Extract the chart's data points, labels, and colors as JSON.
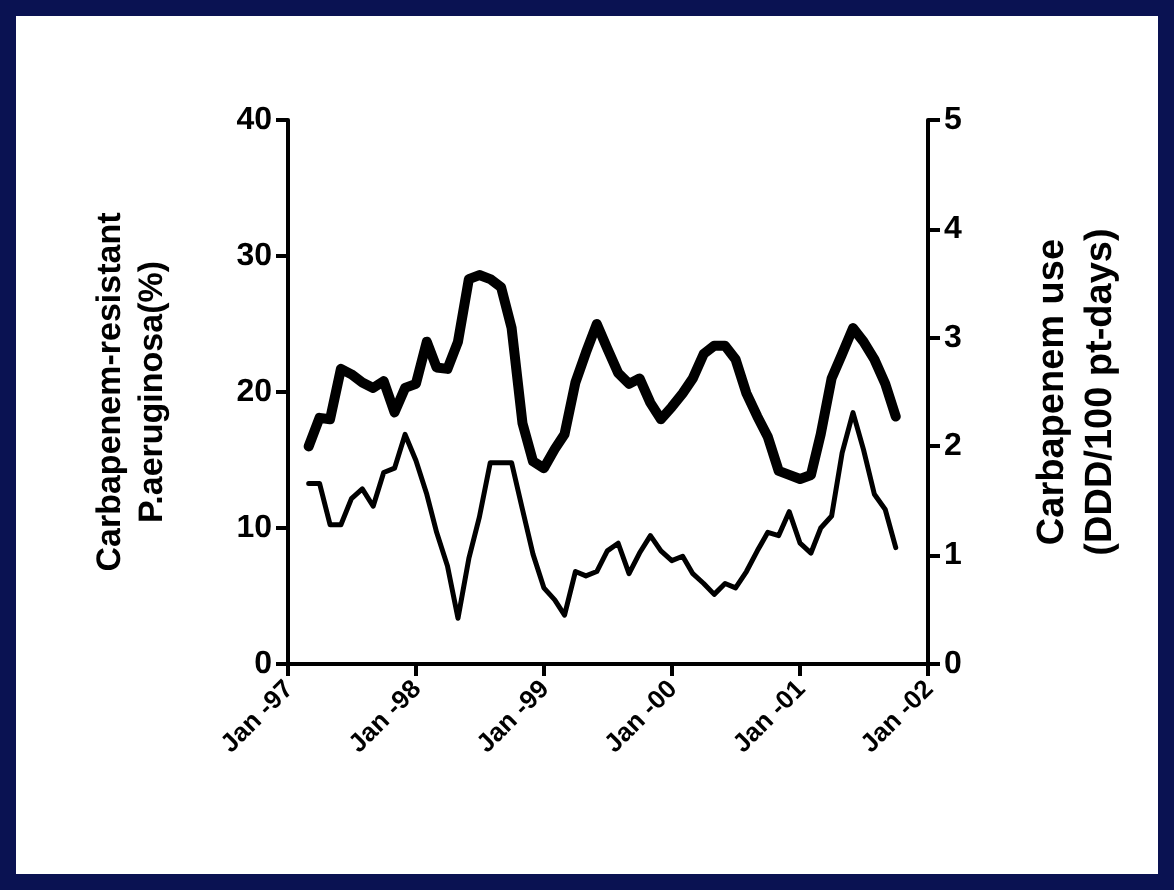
{
  "chart_data": {
    "type": "line",
    "ylabel": "Carbapenem-resistant\nP.aeruginosa(%)",
    "y2label": "Carbapenem use\n(DDD/100 pt-days)",
    "x": [
      "1997-03",
      "1997-04",
      "1997-05",
      "1997-06",
      "1997-07",
      "1997-08",
      "1997-09",
      "1997-10",
      "1997-11",
      "1997-12",
      "1998-01",
      "1998-02",
      "1998-03",
      "1998-04",
      "1998-05",
      "1998-06",
      "1998-07",
      "1998-08",
      "1998-09",
      "1998-10",
      "1998-11",
      "1998-12",
      "1999-01",
      "1999-02",
      "1999-03",
      "1999-04",
      "1999-05",
      "1999-06",
      "1999-07",
      "1999-08",
      "1999-09",
      "1999-10",
      "1999-11",
      "1999-12",
      "2000-01",
      "2000-02",
      "2000-03",
      "2000-04",
      "2000-05",
      "2000-06",
      "2000-07",
      "2000-08",
      "2000-09",
      "2000-10",
      "2000-11",
      "2000-12",
      "2001-01",
      "2001-02",
      "2001-03",
      "2001-04",
      "2001-05",
      "2001-06",
      "2001-07",
      "2001-08",
      "2001-09",
      "2001-10"
    ],
    "series": [
      {
        "color": "#000000",
        "values": [
          16.0,
          18.1,
          18.0,
          21.7,
          21.3,
          20.7,
          20.3,
          20.8,
          18.5,
          20.3,
          20.6,
          23.7,
          21.8,
          21.7,
          23.7,
          28.3,
          28.6,
          28.3,
          27.7,
          24.7,
          17.7,
          14.9,
          14.4,
          15.8,
          16.9,
          20.7,
          22.9,
          25.0,
          23.2,
          21.4,
          20.6,
          21.0,
          19.2,
          18.0,
          18.9,
          19.9,
          21.0,
          22.8,
          23.4,
          23.4,
          22.4,
          19.9,
          18.2,
          16.7,
          14.2,
          13.9,
          13.6,
          13.9,
          16.9,
          21.0,
          22.8,
          24.7,
          23.7,
          22.4,
          20.6,
          18.2
        ]
      },
      {
        "color": "#000000",
        "axis": "y2",
        "values": [
          1.66,
          1.66,
          1.28,
          1.28,
          1.52,
          1.61,
          1.45,
          1.76,
          1.8,
          2.11,
          1.87,
          1.56,
          1.21,
          0.9,
          0.42,
          0.97,
          1.35,
          1.85,
          1.85,
          1.85,
          1.42,
          1.01,
          0.7,
          0.59,
          0.45,
          0.85,
          0.81,
          0.85,
          1.04,
          1.11,
          0.83,
          1.02,
          1.18,
          1.04,
          0.95,
          0.99,
          0.83,
          0.74,
          0.64,
          0.74,
          0.7,
          0.85,
          1.04,
          1.21,
          1.18,
          1.4,
          1.11,
          1.02,
          1.25,
          1.36,
          1.94,
          2.31,
          1.97,
          1.56,
          1.42,
          1.07
        ]
      }
    ],
    "xlim": [
      "1997-01",
      "2002-01"
    ],
    "xticks": [
      {
        "value": "1997-01",
        "label": "Jan -97"
      },
      {
        "value": "1998-01",
        "label": "Jan -98"
      },
      {
        "value": "1999-01",
        "label": "Jan -99"
      },
      {
        "value": "2000-01",
        "label": "Jan -00"
      },
      {
        "value": "2001-01",
        "label": "Jan -01"
      },
      {
        "value": "2002-01",
        "label": "Jan -02"
      }
    ],
    "ylim": [
      0,
      40
    ],
    "yticks": [
      0,
      10,
      20,
      30,
      40
    ],
    "y2lim": [
      0,
      5
    ],
    "y2ticks": [
      0,
      1,
      2,
      3,
      4,
      5
    ],
    "grid": false,
    "marker": "none",
    "line_style": "solid"
  }
}
